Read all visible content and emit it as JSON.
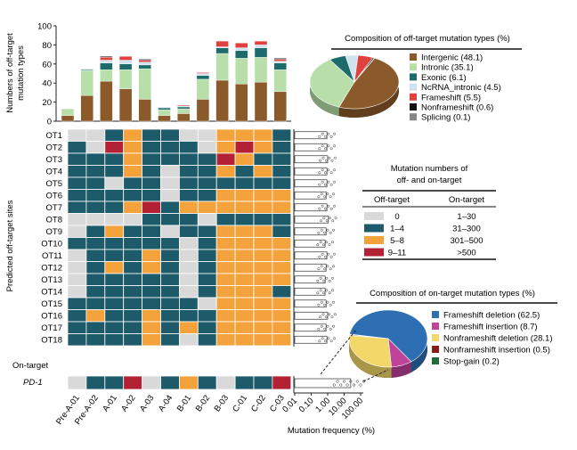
{
  "colors": {
    "grey": "#d9d9d9",
    "teal": "#1d5b6b",
    "orange": "#f4a23c",
    "red": "#b22234",
    "intergenic": "#8b5a2b",
    "intronic": "#b8dfaa",
    "exonic": "#1d6b6b",
    "ncrna": "#cfe2ef",
    "frameshift": "#e0413f",
    "nonframeshift": "#111111",
    "splicing": "#888888",
    "fs_del": "#2e6fb4",
    "fs_ins": "#c0439a",
    "nfs_del": "#f2d769",
    "nfs_ins": "#8b1a1a",
    "stopgain": "#1f6b3a"
  },
  "chart_data": [
    {
      "type": "bar",
      "stacked": true,
      "ylabel": "Numbers of off-target mutation types",
      "ylim": [
        0,
        100
      ],
      "yticks": [
        "0",
        "20",
        "40",
        "60",
        "80",
        "100"
      ],
      "categories": [
        "Pre-A-01",
        "Pre-A-02",
        "A-01",
        "A-02",
        "A-03",
        "A-04",
        "B-01",
        "B-02",
        "B-03",
        "C-01",
        "C-02",
        "C-03"
      ],
      "series": [
        {
          "name": "Intergenic",
          "color_key": "intergenic",
          "values": [
            6,
            27,
            42,
            34,
            23,
            6,
            8,
            23,
            43,
            39,
            41,
            31
          ]
        },
        {
          "name": "Intronic",
          "color_key": "intronic",
          "values": [
            7,
            26,
            12,
            20,
            32,
            6,
            5,
            21,
            28,
            27,
            26,
            23
          ]
        },
        {
          "name": "Exonic",
          "color_key": "exonic",
          "values": [
            0,
            1,
            7,
            6,
            4,
            2,
            2,
            4,
            6,
            8,
            10,
            7
          ]
        },
        {
          "name": "NcRNA_intronic",
          "color_key": "ncrna",
          "values": [
            0,
            1,
            3,
            4,
            3,
            1,
            1,
            2,
            1,
            3,
            3,
            2
          ]
        },
        {
          "name": "Frameshift",
          "color_key": "frameshift",
          "values": [
            0,
            0,
            3,
            4,
            2,
            0,
            1,
            1,
            6,
            5,
            4,
            2
          ]
        },
        {
          "name": "Nonframeshift",
          "color_key": "nonframeshift",
          "values": [
            0,
            0,
            1,
            0,
            1,
            0,
            0,
            0,
            0,
            0,
            0,
            1
          ]
        }
      ]
    },
    {
      "type": "pie",
      "title": "Composition of off-target mutation types (%)",
      "labels": [
        "Intergenic (48.1)",
        "Intronic (35.1)",
        "Exonic (6.1)",
        "NcRNA_intronic (4.5)",
        "Frameshift (5.5)",
        "Nonframeshift (0.6)",
        "Splicing (0.1)"
      ],
      "values": [
        48.1,
        35.1,
        6.1,
        4.5,
        5.5,
        0.6,
        0.1
      ],
      "color_keys": [
        "intergenic",
        "intronic",
        "exonic",
        "ncrna",
        "frameshift",
        "nonframeshift",
        "splicing"
      ]
    },
    {
      "type": "heatmap",
      "ylabel": "Predicted off-target sites",
      "rows": [
        "OT1",
        "OT2",
        "OT3",
        "OT4",
        "OT5",
        "OT6",
        "OT7",
        "OT8",
        "OT9",
        "OT10",
        "OT11",
        "OT12",
        "OT13",
        "OT14",
        "OT15",
        "OT16",
        "OT17",
        "OT18"
      ],
      "columns": [
        "Pre-A-01",
        "Pre-A-02",
        "A-01",
        "A-02",
        "A-03",
        "A-04",
        "B-01",
        "B-02",
        "B-03",
        "C-01",
        "C-02",
        "C-03"
      ],
      "legend_levels": [
        "0",
        "1",
        "2",
        "3"
      ],
      "values": [
        [
          0,
          0,
          1,
          2,
          1,
          1,
          0,
          0,
          2,
          2,
          2,
          1
        ],
        [
          1,
          0,
          3,
          2,
          1,
          1,
          1,
          0,
          2,
          3,
          2,
          1
        ],
        [
          1,
          1,
          1,
          2,
          1,
          1,
          1,
          1,
          3,
          2,
          1,
          1
        ],
        [
          1,
          1,
          1,
          2,
          1,
          0,
          1,
          1,
          2,
          1,
          2,
          1
        ],
        [
          1,
          1,
          0,
          1,
          1,
          0,
          1,
          1,
          1,
          1,
          1,
          1
        ],
        [
          1,
          1,
          1,
          1,
          1,
          0,
          1,
          1,
          2,
          2,
          2,
          2
        ],
        [
          1,
          1,
          1,
          2,
          3,
          1,
          2,
          2,
          2,
          2,
          2,
          2
        ],
        [
          0,
          0,
          0,
          0,
          1,
          1,
          1,
          0,
          1,
          1,
          1,
          1
        ],
        [
          0,
          1,
          2,
          1,
          1,
          0,
          1,
          1,
          2,
          2,
          2,
          1
        ],
        [
          1,
          1,
          1,
          1,
          1,
          1,
          0,
          1,
          2,
          2,
          2,
          2
        ],
        [
          0,
          1,
          1,
          1,
          2,
          1,
          0,
          1,
          2,
          2,
          2,
          2
        ],
        [
          0,
          1,
          2,
          1,
          2,
          1,
          0,
          1,
          2,
          2,
          2,
          2
        ],
        [
          0,
          1,
          1,
          1,
          1,
          1,
          0,
          1,
          2,
          2,
          2,
          2
        ],
        [
          0,
          1,
          1,
          1,
          1,
          1,
          0,
          1,
          2,
          2,
          2,
          1
        ],
        [
          1,
          1,
          1,
          1,
          1,
          1,
          1,
          0,
          2,
          2,
          2,
          2
        ],
        [
          1,
          2,
          1,
          1,
          2,
          1,
          1,
          1,
          2,
          2,
          2,
          2
        ],
        [
          1,
          1,
          1,
          1,
          2,
          1,
          2,
          1,
          2,
          2,
          2,
          2
        ],
        [
          1,
          1,
          1,
          1,
          2,
          1,
          0,
          1,
          2,
          2,
          2,
          2
        ]
      ],
      "on_target_label": "On-target",
      "on_target_row": "PD-1",
      "on_target_values": [
        0,
        1,
        1,
        3,
        0,
        1,
        2,
        1,
        0,
        1,
        1,
        3
      ]
    },
    {
      "type": "scatter",
      "xlabel": "Mutation frequency (%)",
      "xscale": "log",
      "xlim": [
        0.01,
        100
      ],
      "xticks": [
        "0.01",
        "0.10",
        "1.00",
        "10.00",
        "100.00"
      ],
      "mean_values": [
        0.9,
        0.9,
        1.0,
        0.9,
        0.9,
        0.8,
        0.9,
        1.1,
        0.8,
        0.7,
        0.9,
        0.8,
        0.7,
        0.7,
        0.8,
        1.0,
        0.8,
        0.9
      ],
      "on_target_mean": 25
    },
    {
      "type": "pie",
      "title": "Composition of on-target mutation types (%)",
      "labels": [
        "Frameshift deletion (62.5)",
        "Frameshift insertion (8.7)",
        "Nonframeshift deletion (28.1)",
        "Nonframeshift insertion (0.5)",
        "Stop-gain (0.2)"
      ],
      "values": [
        62.5,
        8.7,
        28.1,
        0.5,
        0.2
      ],
      "color_keys": [
        "fs_del",
        "fs_ins",
        "nfs_del",
        "nfs_ins",
        "stopgain"
      ]
    }
  ],
  "mutation_table": {
    "title_line1": "Mutation numbers of",
    "title_line2": "off- and on-target",
    "col_off": "Off-target",
    "col_on": "On-target",
    "rows": [
      {
        "off": "0",
        "on": "1–30",
        "color_key": "grey"
      },
      {
        "off": "1–4",
        "on": "31–300",
        "color_key": "teal"
      },
      {
        "off": "5–8",
        "on": "301–500",
        "color_key": "orange"
      },
      {
        "off": "9–11",
        "on": ">500",
        "color_key": "red"
      }
    ]
  }
}
